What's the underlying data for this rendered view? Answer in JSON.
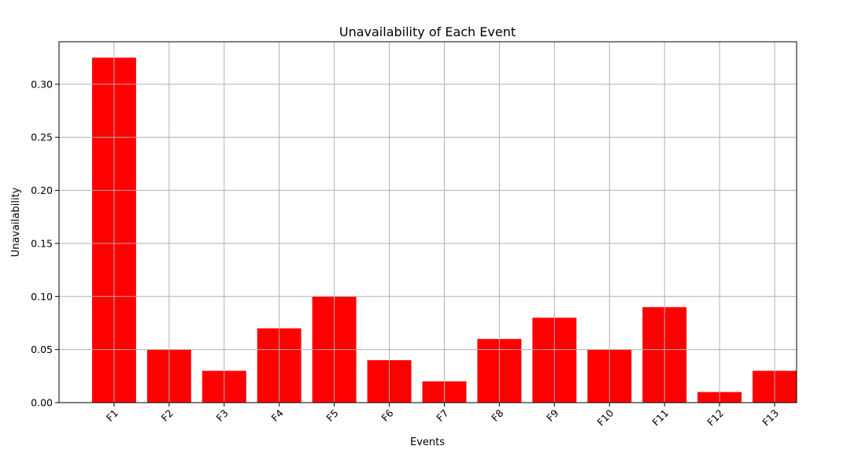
{
  "chart_data": {
    "type": "bar",
    "title": "Unavailability of Each Event",
    "xlabel": "Events",
    "ylabel": "Unavailability",
    "categories": [
      "F1",
      "F2",
      "F3",
      "F4",
      "F5",
      "F6",
      "F7",
      "F8",
      "F9",
      "F10",
      "F11",
      "F12",
      "F13"
    ],
    "values": [
      0.325,
      0.05,
      0.03,
      0.07,
      0.1,
      0.04,
      0.02,
      0.06,
      0.08,
      0.05,
      0.09,
      0.01,
      0.03
    ],
    "ylim": [
      0,
      0.34
    ],
    "yticks": [
      "0.00",
      "0.05",
      "0.10",
      "0.15",
      "0.20",
      "0.25",
      "0.30"
    ],
    "bar_color": "#ff0000",
    "grid": true,
    "xtick_rotation": 45
  }
}
